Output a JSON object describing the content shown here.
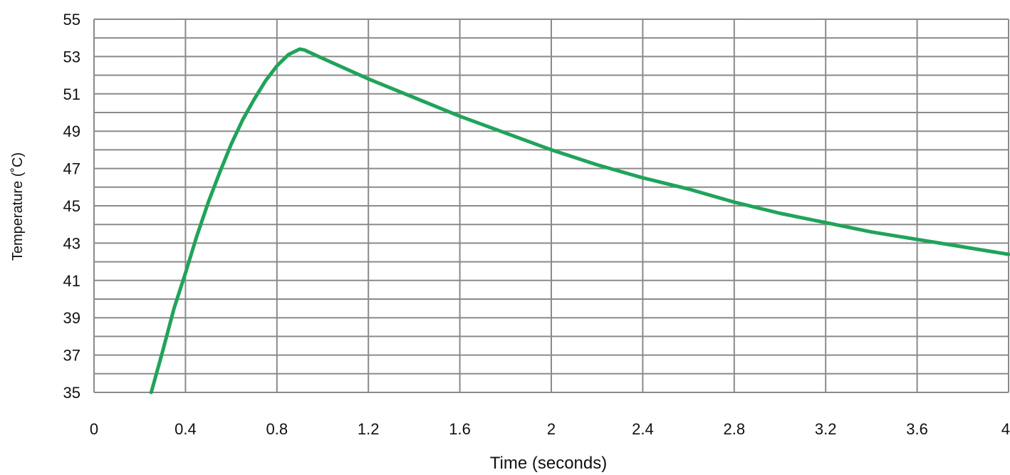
{
  "chart_data": {
    "type": "line",
    "title": "",
    "xlabel": "Time (seconds)",
    "ylabel": "Temperature (˚C)",
    "xlim": [
      0,
      4
    ],
    "ylim": [
      35,
      55
    ],
    "x_ticks": [
      "0",
      "0.4",
      "0.8",
      "1.2",
      "1.6",
      "2",
      "2.4",
      "2.8",
      "3.2",
      "3.6",
      "4"
    ],
    "y_ticks": [
      "35",
      "37",
      "39",
      "41",
      "43",
      "45",
      "47",
      "49",
      "51",
      "53",
      "55"
    ],
    "grid": true,
    "legend": "none",
    "series": [
      {
        "color": "#21a35a",
        "x": [
          0.25,
          0.3,
          0.35,
          0.4,
          0.45,
          0.5,
          0.55,
          0.6,
          0.65,
          0.7,
          0.75,
          0.8,
          0.85,
          0.9,
          0.92,
          1.0,
          1.2,
          1.4,
          1.6,
          1.8,
          2.0,
          2.2,
          2.4,
          2.6,
          2.8,
          3.0,
          3.2,
          3.4,
          3.6,
          3.8,
          4.0
        ],
        "y": [
          35.0,
          37.2,
          39.5,
          41.4,
          43.4,
          45.2,
          46.8,
          48.3,
          49.6,
          50.7,
          51.7,
          52.5,
          53.1,
          53.4,
          53.35,
          52.9,
          51.8,
          50.8,
          49.8,
          48.9,
          48.0,
          47.2,
          46.5,
          45.9,
          45.2,
          44.6,
          44.1,
          43.6,
          43.2,
          42.8,
          42.4
        ]
      }
    ]
  }
}
